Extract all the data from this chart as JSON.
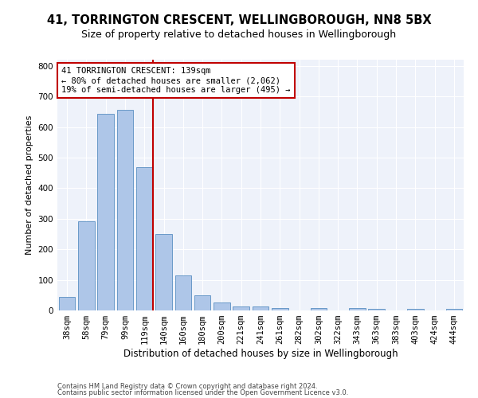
{
  "title": "41, TORRINGTON CRESCENT, WELLINGBOROUGH, NN8 5BX",
  "subtitle": "Size of property relative to detached houses in Wellingborough",
  "xlabel": "Distribution of detached houses by size in Wellingborough",
  "ylabel": "Number of detached properties",
  "categories": [
    "38sqm",
    "58sqm",
    "79sqm",
    "99sqm",
    "119sqm",
    "140sqm",
    "160sqm",
    "180sqm",
    "200sqm",
    "221sqm",
    "241sqm",
    "261sqm",
    "282sqm",
    "302sqm",
    "322sqm",
    "343sqm",
    "363sqm",
    "383sqm",
    "403sqm",
    "424sqm",
    "444sqm"
  ],
  "values": [
    43,
    292,
    643,
    657,
    469,
    251,
    114,
    49,
    26,
    14,
    13,
    8,
    0,
    7,
    0,
    8,
    6,
    0,
    6,
    0,
    6
  ],
  "bar_color": "#aec6e8",
  "bar_edge_color": "#5a8fc2",
  "highlight_color": "#c00000",
  "highlight_index": 4,
  "annotation_line1": "41 TORRINGTON CRESCENT: 139sqm",
  "annotation_line2": "← 80% of detached houses are smaller (2,062)",
  "annotation_line3": "19% of semi-detached houses are larger (495) →",
  "annotation_box_color": "white",
  "annotation_box_edge": "#c00000",
  "ylim": [
    0,
    820
  ],
  "yticks": [
    0,
    100,
    200,
    300,
    400,
    500,
    600,
    700,
    800
  ],
  "footer1": "Contains HM Land Registry data © Crown copyright and database right 2024.",
  "footer2": "Contains public sector information licensed under the Open Government Licence v3.0.",
  "bg_color": "#eef2fa",
  "fig_bg_color": "white",
  "title_fontsize": 10.5,
  "subtitle_fontsize": 9,
  "xlabel_fontsize": 8.5,
  "ylabel_fontsize": 8,
  "tick_fontsize": 7.5,
  "annotation_fontsize": 7.5,
  "footer_fontsize": 6
}
